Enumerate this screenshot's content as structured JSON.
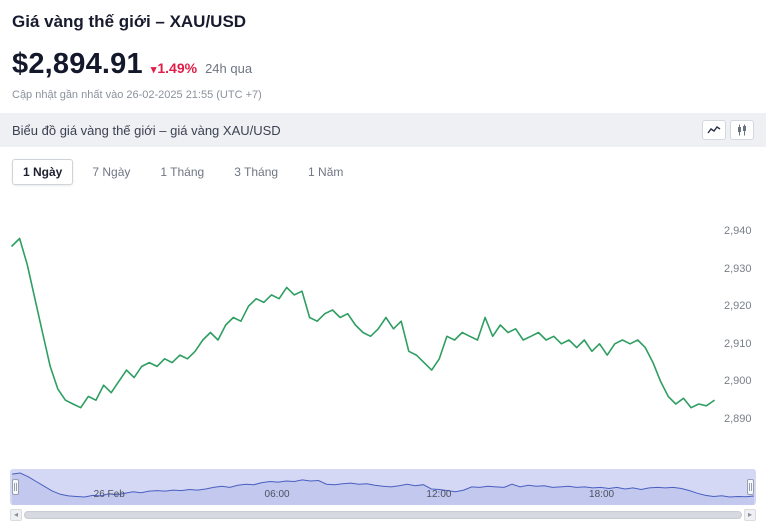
{
  "header": {
    "title": "Giá vàng thế giới – XAU/USD",
    "price": "$2,894.91",
    "change_percent": "1.49%",
    "change_direction": "down",
    "change_color": "#e11d48",
    "period_label": "24h qua",
    "updated_text": "Cập nhật gần nhất vào 26-02-2025 21:55 (UTC +7)"
  },
  "chart_header": {
    "title": "Biểu đồ giá vàng thế giới – giá vàng XAU/USD"
  },
  "tabs": {
    "items": [
      {
        "label": "1 Ngày",
        "active": true
      },
      {
        "label": "7 Ngày",
        "active": false
      },
      {
        "label": "1 Tháng",
        "active": false
      },
      {
        "label": "3 Tháng",
        "active": false
      },
      {
        "label": "1 Năm",
        "active": false
      }
    ]
  },
  "chart_data": {
    "type": "line",
    "title": "Giá vàng XAU/USD – 1 ngày",
    "ylim": [
      2890,
      2940
    ],
    "yticks": [
      2940,
      2930,
      2920,
      2910,
      2900,
      2890
    ],
    "ytick_labels": [
      "2,940",
      "2,930",
      "2,920",
      "2,910",
      "2,900",
      "2,890"
    ],
    "x_labels": [
      "26 Feb",
      "06:00",
      "12:00",
      "18:00"
    ],
    "line_color": "#2f9e62",
    "grid": false,
    "legend": "none",
    "series": [
      {
        "name": "XAU/USD",
        "values": [
          2936,
          2938,
          2931,
          2922,
          2913,
          2904,
          2898,
          2895,
          2894,
          2893,
          2896,
          2895,
          2899,
          2897,
          2900,
          2903,
          2901,
          2904,
          2905,
          2904,
          2906,
          2905,
          2907,
          2906,
          2908,
          2911,
          2913,
          2911,
          2915,
          2917,
          2916,
          2920,
          2922,
          2921,
          2923,
          2922,
          2925,
          2923,
          2924,
          2917,
          2916,
          2918,
          2919,
          2917,
          2918,
          2915,
          2913,
          2912,
          2914,
          2917,
          2914,
          2916,
          2908,
          2907,
          2905,
          2903,
          2906,
          2912,
          2911,
          2913,
          2912,
          2911,
          2917,
          2912,
          2915,
          2913,
          2914,
          2911,
          2912,
          2913,
          2911,
          2912,
          2910,
          2911,
          2909,
          2911,
          2908,
          2910,
          2907,
          2910,
          2911,
          2910,
          2911,
          2909,
          2905,
          2900,
          2896,
          2894,
          2895.5,
          2893,
          2894,
          2893.5,
          2894.91
        ]
      }
    ]
  },
  "navigator": {
    "time_labels": [
      "26 Feb",
      "06:00",
      "12:00",
      "18:00"
    ],
    "line_color": "#4a5fc1",
    "area_color": "#c2c8ee",
    "bg_color": "#d4d8f4"
  }
}
